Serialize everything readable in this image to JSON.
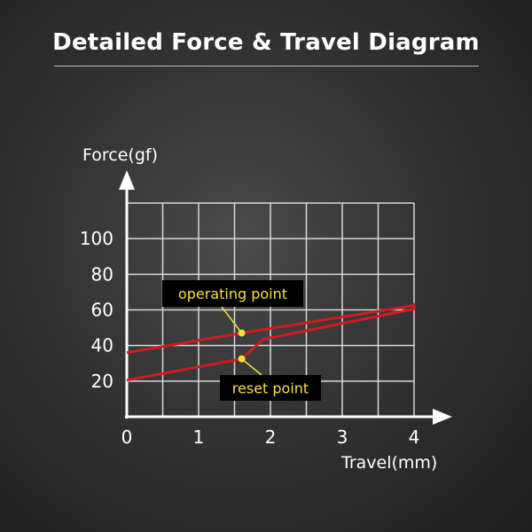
{
  "title": "Detailed Force & Travel Diagram",
  "chart_data": {
    "type": "line",
    "title": "Detailed Force & Travel Diagram",
    "xlabel": "Travel(mm)",
    "ylabel": "Force(gf)",
    "xlim": [
      0,
      4
    ],
    "ylim": [
      0,
      120
    ],
    "x_ticks": [
      "0",
      "1",
      "2",
      "3",
      "4"
    ],
    "y_ticks": [
      "20",
      "40",
      "60",
      "80",
      "100"
    ],
    "grid": true,
    "x_grid_step": 0.5,
    "y_grid_step": 20,
    "line_color": "#d01c1f",
    "series": [
      {
        "points": [
          [
            0,
            36
          ],
          [
            1.6,
            47
          ],
          [
            4,
            62.5
          ]
        ]
      },
      {
        "points": [
          [
            0,
            20.5
          ],
          [
            1.6,
            32.5
          ],
          [
            1.9,
            43.5
          ],
          [
            4,
            60.5
          ],
          [
            4,
            64
          ]
        ]
      }
    ],
    "annotations": [
      {
        "text": "operating point",
        "x": 1.6,
        "y": 47,
        "color": "#f2e23a"
      },
      {
        "text": "reset point",
        "x": 1.6,
        "y": 32.5,
        "color": "#f2e23a"
      }
    ]
  }
}
